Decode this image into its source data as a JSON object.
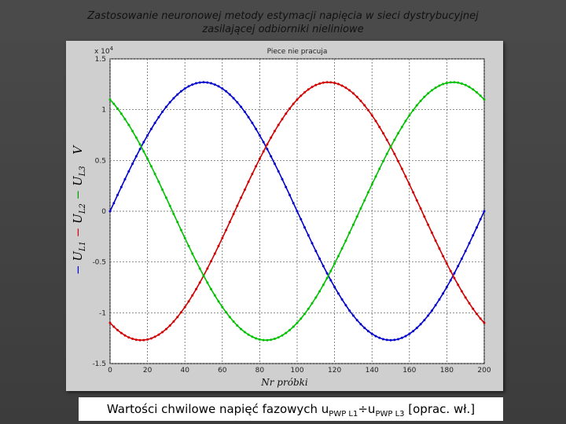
{
  "slide": {
    "title_line1": "Zastosowanie neuronowej metody estymacji napięcia w sieci dystrybucyjnej",
    "title_line2": "zasilającej odbiorniki nieliniowe",
    "caption_prefix": "Wartości chwilowe napięć fazowych u",
    "caption_sub1": "PWP L1",
    "caption_mid": "÷u",
    "caption_sub2": "PWP L3",
    "caption_suffix": " [oprac. wł.]"
  },
  "chart_data": {
    "type": "line",
    "title": "Piece nie pracuja",
    "xlabel": "Nr próbki",
    "ylabel": "- U_L1 - U_L2 - U_L3   V",
    "ylabel_parts": {
      "dash": "−",
      "u": "U",
      "s1": "L1",
      "s2": "L2",
      "s3": "L3",
      "unit": "V"
    },
    "y_exponent": "x 10",
    "y_exponent_power": "4",
    "xlim": [
      0,
      200
    ],
    "ylim": [
      -1.5,
      1.5
    ],
    "y_scale": 10000,
    "xticks": [
      "0",
      "20",
      "40",
      "60",
      "80",
      "100",
      "120",
      "140",
      "160",
      "180",
      "200"
    ],
    "yticks": [
      "1.5",
      "1",
      "0.5",
      "0",
      "-0.5",
      "-1",
      "-1.5"
    ],
    "grid": true,
    "series_model": "y = amplitude * sin(2*pi*(x + shift)/period)",
    "series": [
      {
        "color": "#0000cc",
        "amplitude": 1.27,
        "period": 200,
        "shift": 0
      },
      {
        "color": "#d00000",
        "amplitude": 1.27,
        "period": 200,
        "shift": -66.67
      },
      {
        "color": "#00c000",
        "amplitude": 1.27,
        "period": 200,
        "shift": 66.67
      }
    ]
  }
}
